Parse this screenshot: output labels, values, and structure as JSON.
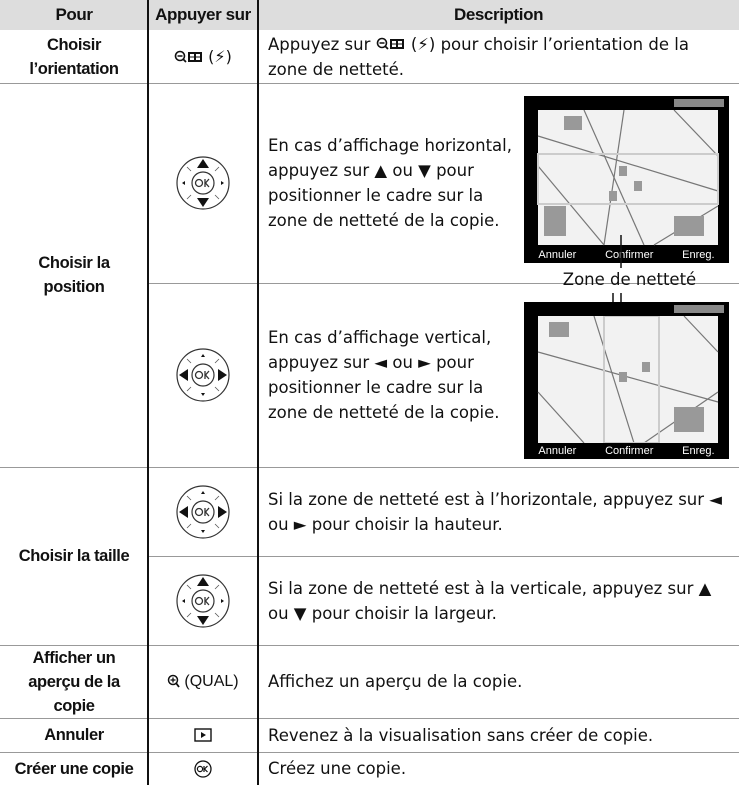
{
  "header": {
    "columns": [
      "Pour",
      "Appuyer sur",
      "Description"
    ]
  },
  "orientation": {
    "action": "Choisir l’orientation",
    "key": "(⚡)",
    "description_start": "Appuyez sur",
    "description_end": "(⚡) pour choisir l’orientation de la zone de netteté."
  },
  "position": {
    "action": "Choisir la position",
    "horizontal": "En cas d’affichage horizontal, appuyez sur ▲ ou ▼  pour positionner le cadre sur la zone de netteté de la copie.",
    "vertical": "En cas d’affichage vertical, appuyez sur ◄ ou ►  pour positionner le cadre sur la zone de netteté de la copie.",
    "caption": "Zone de netteté",
    "screen": {
      "cancel": "Annuler",
      "confirm": "Confirmer",
      "save": "Enreg."
    }
  },
  "size": {
    "action": "Choisir la taille",
    "horizontal": "Si la zone de netteté est à l’horizontale, appuyez sur ◄ ou ► pour choisir la hauteur.",
    "vertical": "Si la zone de netteté est à la verticale, appuyez sur ▲ ou ▼ pour choisir la largeur."
  },
  "preview": {
    "action": "Afficher un aperçu de la copie",
    "key": "(QUAL)",
    "description": "Affichez un aperçu de la copie."
  },
  "cancel": {
    "action": "Annuler",
    "description": "Revenez à la visualisation sans créer de copie."
  },
  "create": {
    "action": "Créer une copie",
    "description": "Créez une copie."
  }
}
